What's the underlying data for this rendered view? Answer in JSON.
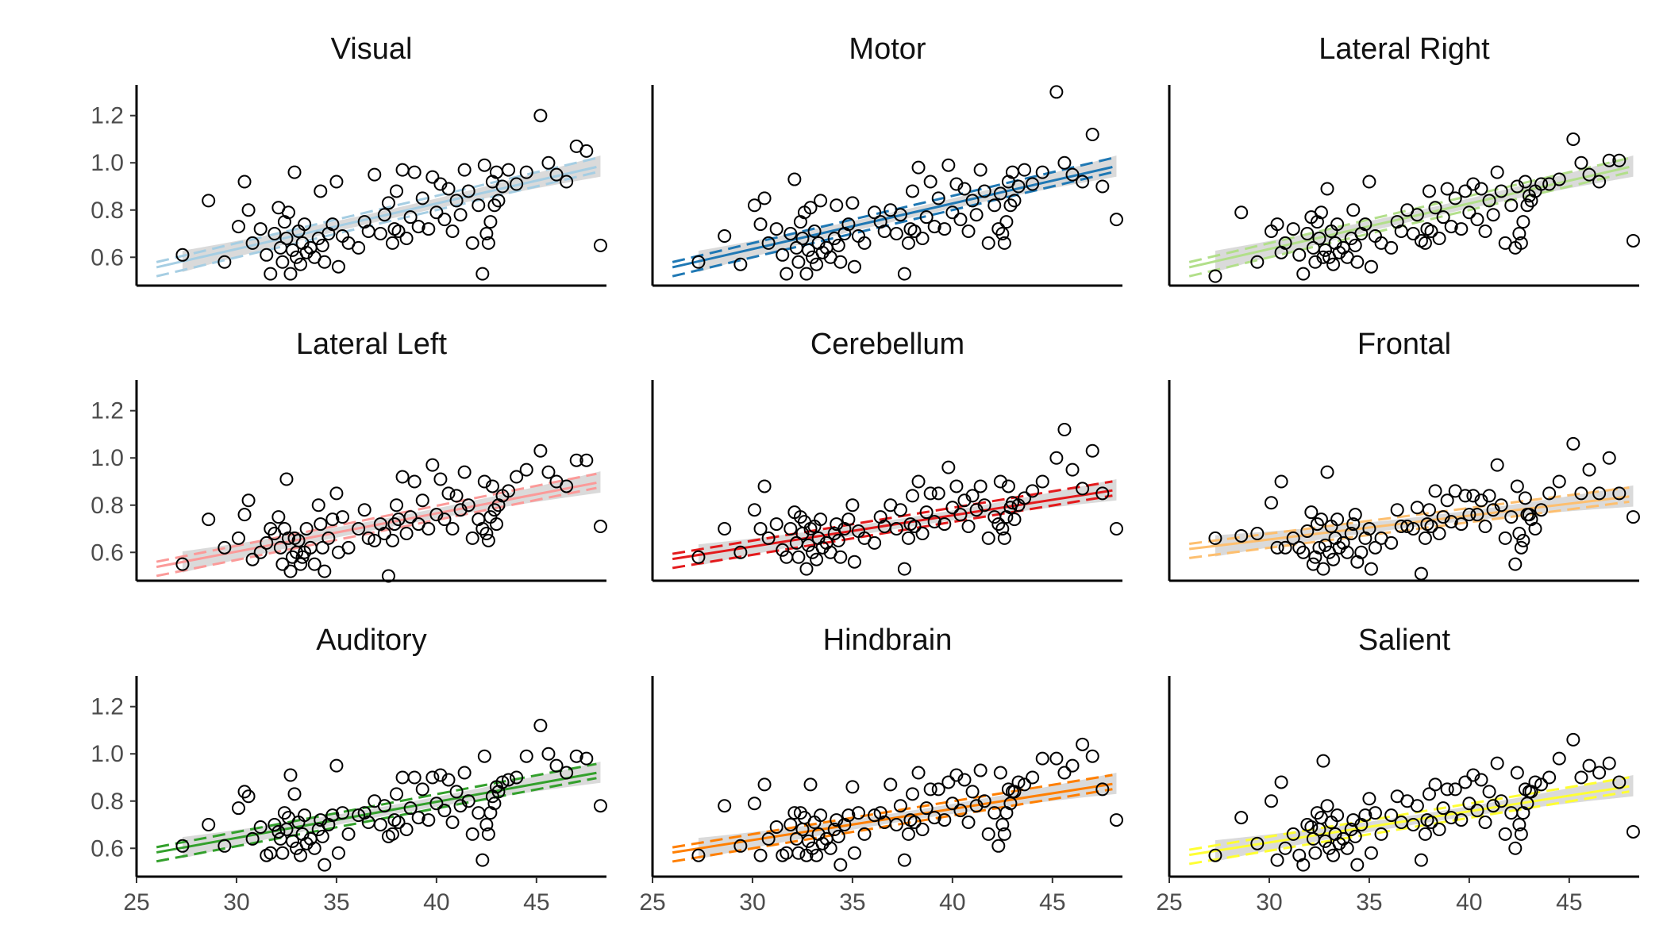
{
  "chart_data": {
    "type": "scatter",
    "xlim": [
      25,
      48.5
    ],
    "ylim": [
      0.48,
      1.33
    ],
    "x_ticks": [
      25,
      30,
      35,
      40,
      45
    ],
    "y_ticks": [
      0.6,
      0.8,
      1.0,
      1.2
    ],
    "x_tick_labels": [
      "25",
      "30",
      "35",
      "40",
      "45"
    ],
    "y_tick_labels": [
      "0.6",
      "0.8",
      "1.0",
      "1.2"
    ],
    "grid": false,
    "legend": "none",
    "x": [
      27.3,
      28.6,
      29.4,
      30.1,
      30.4,
      30.6,
      30.8,
      31.2,
      31.5,
      31.7,
      31.9,
      32.1,
      32.2,
      32.3,
      32.4,
      32.5,
      32.6,
      32.7,
      32.8,
      32.9,
      33.0,
      33.1,
      33.2,
      33.3,
      33.4,
      33.5,
      33.7,
      33.9,
      34.1,
      34.2,
      34.3,
      34.4,
      34.6,
      34.8,
      35.0,
      35.1,
      35.3,
      35.6,
      36.1,
      36.4,
      36.6,
      36.9,
      37.2,
      37.4,
      37.6,
      37.8,
      37.9,
      38.0,
      38.1,
      38.3,
      38.5,
      38.7,
      38.9,
      39.1,
      39.3,
      39.6,
      39.8,
      40.0,
      40.2,
      40.4,
      40.6,
      40.8,
      41.0,
      41.2,
      41.4,
      41.6,
      41.8,
      42.1,
      42.3,
      42.4,
      42.5,
      42.6,
      42.7,
      42.8,
      42.9,
      43.0,
      43.1,
      43.3,
      43.6,
      44.0,
      44.5,
      45.2,
      45.6,
      46.0,
      46.5,
      47.0,
      47.5,
      48.2
    ],
    "series": [
      {
        "name": "Visual",
        "color": "#a6cee3",
        "slope": 0.0193,
        "intercept": 0.0558,
        "values": [
          0.61,
          0.84,
          0.58,
          0.73,
          0.92,
          0.8,
          0.66,
          0.72,
          0.61,
          0.53,
          0.7,
          0.81,
          0.64,
          0.58,
          0.75,
          0.68,
          0.79,
          0.53,
          0.63,
          0.96,
          0.6,
          0.71,
          0.57,
          0.66,
          0.74,
          0.62,
          0.64,
          0.6,
          0.68,
          0.88,
          0.65,
          0.58,
          0.7,
          0.74,
          0.92,
          0.56,
          0.69,
          0.66,
          0.64,
          0.75,
          0.71,
          0.95,
          0.7,
          0.78,
          0.83,
          0.66,
          0.72,
          0.88,
          0.71,
          0.97,
          0.68,
          0.77,
          0.96,
          0.73,
          0.85,
          0.72,
          0.94,
          0.79,
          0.91,
          0.76,
          0.89,
          0.71,
          0.84,
          0.78,
          0.97,
          0.88,
          0.66,
          0.82,
          0.53,
          0.99,
          0.7,
          0.66,
          0.75,
          0.92,
          0.82,
          0.96,
          0.84,
          0.9,
          0.97,
          0.91,
          0.96,
          1.2,
          1.0,
          0.95,
          0.92,
          1.07,
          1.05,
          0.65
        ]
      },
      {
        "name": "Motor",
        "color": "#1f78b4",
        "slope": 0.0193,
        "intercept": 0.0558,
        "values": [
          0.58,
          0.69,
          0.57,
          0.82,
          0.74,
          0.85,
          0.66,
          0.72,
          0.61,
          0.53,
          0.7,
          0.93,
          0.64,
          0.58,
          0.75,
          0.68,
          0.79,
          0.53,
          0.63,
          0.81,
          0.6,
          0.71,
          0.57,
          0.66,
          0.84,
          0.62,
          0.64,
          0.6,
          0.68,
          0.82,
          0.65,
          0.58,
          0.7,
          0.74,
          0.83,
          0.56,
          0.69,
          0.66,
          0.79,
          0.75,
          0.71,
          0.8,
          0.7,
          0.78,
          0.53,
          0.66,
          0.72,
          0.88,
          0.71,
          0.98,
          0.68,
          0.77,
          0.92,
          0.73,
          0.85,
          0.72,
          0.99,
          0.79,
          0.91,
          0.76,
          0.89,
          0.71,
          0.84,
          0.78,
          0.97,
          0.88,
          0.66,
          0.82,
          0.72,
          0.87,
          0.7,
          0.66,
          0.75,
          0.92,
          0.82,
          0.96,
          0.84,
          0.9,
          0.97,
          0.91,
          0.96,
          1.3,
          1.0,
          0.95,
          0.92,
          1.12,
          0.9,
          0.76
        ]
      },
      {
        "name": "Lateral Right",
        "color": "#b2df8a",
        "slope": 0.0193,
        "intercept": 0.0558,
        "values": [
          0.52,
          0.79,
          0.58,
          0.71,
          0.74,
          0.62,
          0.66,
          0.72,
          0.61,
          0.53,
          0.7,
          0.77,
          0.64,
          0.58,
          0.75,
          0.68,
          0.79,
          0.6,
          0.63,
          0.89,
          0.6,
          0.71,
          0.57,
          0.66,
          0.74,
          0.62,
          0.64,
          0.6,
          0.68,
          0.8,
          0.65,
          0.58,
          0.7,
          0.74,
          0.92,
          0.56,
          0.69,
          0.66,
          0.64,
          0.75,
          0.71,
          0.8,
          0.7,
          0.78,
          0.67,
          0.66,
          0.72,
          0.88,
          0.71,
          0.81,
          0.68,
          0.77,
          0.89,
          0.73,
          0.85,
          0.72,
          0.88,
          0.79,
          0.91,
          0.76,
          0.89,
          0.71,
          0.84,
          0.78,
          0.96,
          0.88,
          0.66,
          0.82,
          0.64,
          0.9,
          0.7,
          0.66,
          0.75,
          0.92,
          0.82,
          0.86,
          0.84,
          0.88,
          0.91,
          0.91,
          0.93,
          1.1,
          1.0,
          0.95,
          0.92,
          1.01,
          1.01,
          0.67
        ]
      },
      {
        "name": "Lateral Left",
        "color": "#fb9a99",
        "slope": 0.0162,
        "intercept": 0.1172,
        "values": [
          0.55,
          0.74,
          0.62,
          0.66,
          0.76,
          0.82,
          0.57,
          0.6,
          0.64,
          0.7,
          0.68,
          0.75,
          0.62,
          0.55,
          0.7,
          0.91,
          0.66,
          0.52,
          0.58,
          0.66,
          0.6,
          0.65,
          0.55,
          0.58,
          0.6,
          0.7,
          0.62,
          0.55,
          0.8,
          0.72,
          0.62,
          0.52,
          0.66,
          0.74,
          0.85,
          0.6,
          0.75,
          0.62,
          0.7,
          0.78,
          0.66,
          0.65,
          0.72,
          0.68,
          0.5,
          0.65,
          0.72,
          0.8,
          0.74,
          0.92,
          0.68,
          0.75,
          0.9,
          0.72,
          0.82,
          0.7,
          0.97,
          0.76,
          0.91,
          0.74,
          0.85,
          0.7,
          0.84,
          0.78,
          0.94,
          0.8,
          0.66,
          0.74,
          0.7,
          0.9,
          0.68,
          0.65,
          0.75,
          0.88,
          0.78,
          0.72,
          0.8,
          0.84,
          0.86,
          0.92,
          0.95,
          1.03,
          0.94,
          0.9,
          0.88,
          0.99,
          0.99,
          0.71
        ]
      },
      {
        "name": "Cerebellum",
        "color": "#e31a1c",
        "slope": 0.0132,
        "intercept": 0.2288,
        "values": [
          0.58,
          0.7,
          0.6,
          0.78,
          0.7,
          0.88,
          0.66,
          0.72,
          0.61,
          0.58,
          0.7,
          0.77,
          0.64,
          0.58,
          0.75,
          0.68,
          0.73,
          0.53,
          0.63,
          0.7,
          0.6,
          0.71,
          0.57,
          0.66,
          0.74,
          0.62,
          0.64,
          0.6,
          0.68,
          0.72,
          0.65,
          0.58,
          0.7,
          0.74,
          0.8,
          0.56,
          0.69,
          0.66,
          0.64,
          0.75,
          0.71,
          0.8,
          0.7,
          0.78,
          0.53,
          0.66,
          0.72,
          0.84,
          0.71,
          0.9,
          0.68,
          0.77,
          0.85,
          0.73,
          0.85,
          0.72,
          0.96,
          0.79,
          0.88,
          0.76,
          0.82,
          0.71,
          0.84,
          0.78,
          0.88,
          0.8,
          0.66,
          0.75,
          0.72,
          0.9,
          0.7,
          0.66,
          0.75,
          0.88,
          0.79,
          0.81,
          0.74,
          0.8,
          0.83,
          0.86,
          0.9,
          1.0,
          1.12,
          0.95,
          0.87,
          1.03,
          0.85,
          0.7
        ]
      },
      {
        "name": "Frontal",
        "color": "#fdbf6f",
        "slope": 0.0101,
        "intercept": 0.3517,
        "values": [
          0.66,
          0.67,
          0.68,
          0.81,
          0.62,
          0.9,
          0.62,
          0.66,
          0.62,
          0.6,
          0.69,
          0.77,
          0.55,
          0.58,
          0.72,
          0.62,
          0.74,
          0.53,
          0.63,
          0.94,
          0.6,
          0.71,
          0.57,
          0.66,
          0.74,
          0.62,
          0.64,
          0.6,
          0.68,
          0.72,
          0.76,
          0.56,
          0.6,
          0.66,
          0.7,
          0.53,
          0.62,
          0.66,
          0.64,
          0.78,
          0.71,
          0.71,
          0.7,
          0.79,
          0.51,
          0.66,
          0.72,
          0.78,
          0.71,
          0.86,
          0.68,
          0.75,
          0.82,
          0.73,
          0.86,
          0.72,
          0.84,
          0.76,
          0.84,
          0.76,
          0.82,
          0.71,
          0.84,
          0.78,
          0.97,
          0.8,
          0.66,
          0.75,
          0.55,
          0.88,
          0.68,
          0.62,
          0.65,
          0.83,
          0.76,
          0.76,
          0.74,
          0.7,
          0.78,
          0.85,
          0.9,
          1.06,
          0.85,
          0.95,
          0.85,
          1.0,
          0.85,
          0.75
        ]
      },
      {
        "name": "Auditory",
        "color": "#33a02c",
        "slope": 0.0153,
        "intercept": 0.1849,
        "values": [
          0.61,
          0.7,
          0.61,
          0.77,
          0.84,
          0.82,
          0.64,
          0.69,
          0.57,
          0.58,
          0.7,
          0.67,
          0.64,
          0.58,
          0.75,
          0.68,
          0.73,
          0.91,
          0.63,
          0.83,
          0.6,
          0.71,
          0.57,
          0.66,
          0.74,
          0.62,
          0.64,
          0.6,
          0.68,
          0.72,
          0.65,
          0.53,
          0.7,
          0.74,
          0.95,
          0.58,
          0.75,
          0.66,
          0.74,
          0.75,
          0.71,
          0.8,
          0.7,
          0.78,
          0.65,
          0.66,
          0.72,
          0.83,
          0.71,
          0.9,
          0.68,
          0.77,
          0.9,
          0.73,
          0.85,
          0.72,
          0.9,
          0.79,
          0.91,
          0.76,
          0.89,
          0.71,
          0.84,
          0.78,
          0.92,
          0.8,
          0.66,
          0.75,
          0.55,
          0.99,
          0.7,
          0.66,
          0.75,
          0.82,
          0.79,
          0.86,
          0.84,
          0.88,
          0.89,
          0.9,
          0.99,
          1.12,
          1.0,
          0.95,
          0.92,
          0.99,
          0.98,
          0.78
        ]
      },
      {
        "name": "Hindbrain",
        "color": "#ff7f00",
        "slope": 0.0132,
        "intercept": 0.2388,
        "values": [
          0.57,
          0.78,
          0.61,
          0.79,
          0.57,
          0.87,
          0.64,
          0.69,
          0.57,
          0.58,
          0.7,
          0.75,
          0.64,
          0.58,
          0.75,
          0.68,
          0.73,
          0.57,
          0.63,
          0.87,
          0.6,
          0.71,
          0.57,
          0.66,
          0.74,
          0.62,
          0.64,
          0.6,
          0.68,
          0.72,
          0.65,
          0.53,
          0.7,
          0.74,
          0.86,
          0.58,
          0.75,
          0.66,
          0.74,
          0.75,
          0.71,
          0.87,
          0.7,
          0.78,
          0.55,
          0.66,
          0.72,
          0.83,
          0.71,
          0.92,
          0.68,
          0.77,
          0.85,
          0.73,
          0.85,
          0.72,
          0.88,
          0.79,
          0.91,
          0.76,
          0.89,
          0.71,
          0.84,
          0.78,
          0.93,
          0.8,
          0.66,
          0.75,
          0.61,
          0.92,
          0.7,
          0.66,
          0.75,
          0.85,
          0.79,
          0.84,
          0.84,
          0.88,
          0.87,
          0.9,
          0.98,
          0.98,
          0.92,
          0.95,
          1.04,
          0.99,
          0.85,
          0.72
        ]
      },
      {
        "name": "Salient",
        "color": "#ffff33",
        "slope": 0.0132,
        "intercept": 0.2288,
        "values": [
          0.57,
          0.73,
          0.62,
          0.8,
          0.55,
          0.88,
          0.6,
          0.66,
          0.57,
          0.53,
          0.7,
          0.69,
          0.64,
          0.58,
          0.75,
          0.68,
          0.73,
          0.97,
          0.63,
          0.78,
          0.6,
          0.71,
          0.57,
          0.66,
          0.74,
          0.62,
          0.64,
          0.6,
          0.68,
          0.72,
          0.65,
          0.53,
          0.7,
          0.74,
          0.81,
          0.58,
          0.75,
          0.66,
          0.74,
          0.82,
          0.71,
          0.8,
          0.7,
          0.78,
          0.55,
          0.66,
          0.72,
          0.83,
          0.71,
          0.87,
          0.68,
          0.77,
          0.85,
          0.73,
          0.85,
          0.72,
          0.88,
          0.79,
          0.91,
          0.76,
          0.89,
          0.71,
          0.84,
          0.78,
          0.96,
          0.8,
          0.66,
          0.75,
          0.6,
          0.92,
          0.7,
          0.66,
          0.75,
          0.85,
          0.79,
          0.84,
          0.84,
          0.88,
          0.87,
          0.9,
          0.98,
          1.06,
          0.9,
          0.95,
          0.92,
          0.96,
          0.88,
          0.67
        ]
      }
    ]
  }
}
